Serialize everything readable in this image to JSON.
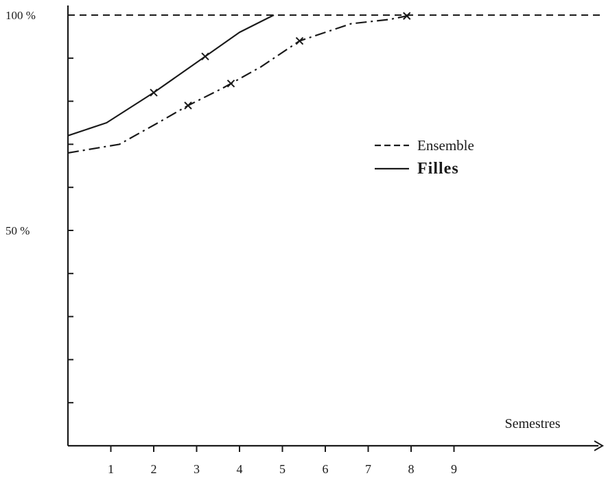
{
  "chart_data": {
    "type": "line",
    "xlabel": "Semestres",
    "ylabel": "",
    "xlim": [
      0,
      12.5
    ],
    "ylim": [
      0,
      100
    ],
    "x_ticks": [
      1,
      2,
      3,
      4,
      5,
      6,
      7,
      8,
      9
    ],
    "x_tick_labels": [
      "1",
      "2",
      "3",
      "4",
      "5",
      "6",
      "7",
      "8",
      "9"
    ],
    "y_ticks": [
      0,
      10,
      20,
      30,
      40,
      50,
      60,
      70,
      80,
      90,
      100
    ],
    "y_tick_labels": [
      {
        "value": 50,
        "label": "50 %"
      },
      {
        "value": 100,
        "label": "100 %"
      }
    ],
    "reference_line": {
      "y": 100,
      "style": "dashed"
    },
    "series": [
      {
        "name": "Ensemble",
        "style": "dash-dot",
        "x": [
          0,
          1.2,
          2.1,
          2.8,
          3.6,
          4.5,
          5.4,
          6.6,
          7.5,
          8.0
        ],
        "y": [
          68,
          70,
          75,
          79,
          83,
          88,
          94,
          98,
          99,
          100
        ],
        "markers_at": [
          2.8,
          3.8,
          5.4,
          7.9
        ]
      },
      {
        "name": "Filles",
        "style": "solid",
        "x": [
          0,
          0.9,
          2.0,
          3.0,
          4.0,
          4.8
        ],
        "y": [
          72,
          75,
          82,
          89,
          96,
          100
        ],
        "markers_at": [
          2.0,
          3.2
        ]
      }
    ],
    "legend": {
      "position": "right-middle",
      "entries": [
        {
          "label": "Ensemble",
          "style": "dashed"
        },
        {
          "label": "Filles",
          "style": "solid"
        }
      ]
    },
    "grid": false,
    "colors": {
      "ink": "#1a1a1a",
      "background": "#ffffff"
    }
  }
}
